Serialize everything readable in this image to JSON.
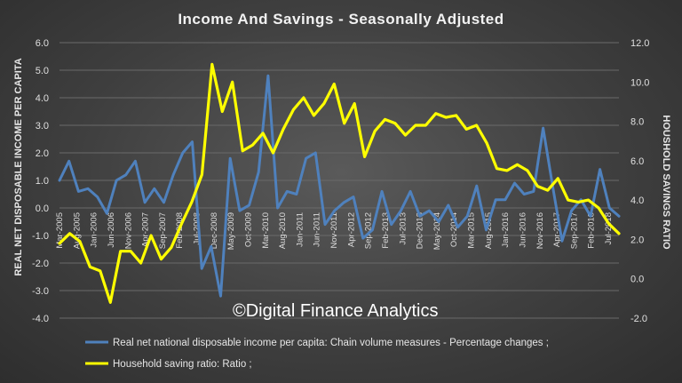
{
  "chart_data": {
    "type": "line",
    "title": "Income And Savings - Seasonally Adjusted",
    "ylabel_left": "REAL NET DISPOSABLE INCOME PER CAPITA",
    "ylabel_right": "HOUSHOLD SAVINGS RATIO",
    "ylim_left": [
      -4.0,
      6.0
    ],
    "ylim_right": [
      -2.0,
      12.0
    ],
    "yticks_left": [
      "6.0",
      "5.0",
      "4.0",
      "3.0",
      "2.0",
      "1.0",
      "0.0",
      "-1.0",
      "-2.0",
      "-3.0",
      "-4.0"
    ],
    "yticks_right": [
      "12.0",
      "10.0",
      "8.0",
      "6.0",
      "4.0",
      "2.0",
      "0.0",
      "-2.0"
    ],
    "x_tick_labels": [
      "Mar-2005",
      "Aug-2005",
      "Jan-2006",
      "Jun-2006",
      "Nov-2006",
      "Apr-2007",
      "Sep-2007",
      "Feb-2008",
      "Jul-2008",
      "Dec-2008",
      "May-2009",
      "Oct-2009",
      "Mar-2010",
      "Aug-2010",
      "Jan-2011",
      "Jun-2011",
      "Nov-2011",
      "Apr-2012",
      "Sep-2012",
      "Feb-2013",
      "Jul-2013",
      "Dec-2013",
      "May-2014",
      "Oct-2014",
      "Mar-2015",
      "Aug-2015",
      "Jan-2016",
      "Jun-2016",
      "Nov-2016",
      "Apr-2017",
      "Sep-2017",
      "Feb-2018",
      "Jul-2018"
    ],
    "grid": true,
    "legend_position": "bottom",
    "series": [
      {
        "name": "Real net national disposable income per capita: Chain volume measures - Percentage changes ;",
        "axis": "left",
        "color": "#4f81bd",
        "values": [
          1.0,
          1.7,
          0.6,
          0.7,
          0.4,
          -0.2,
          1.0,
          1.2,
          1.7,
          0.2,
          0.7,
          0.2,
          1.2,
          2.0,
          2.4,
          -2.2,
          -1.4,
          -3.2,
          1.8,
          -0.1,
          0.1,
          1.3,
          4.8,
          0.0,
          0.6,
          0.5,
          1.8,
          2.0,
          -0.6,
          -0.1,
          0.2,
          0.4,
          -1.1,
          -0.8,
          0.6,
          -0.6,
          -0.1,
          0.6,
          -0.3,
          -0.1,
          -0.5,
          0.1,
          -0.7,
          -0.3,
          0.8,
          -0.8,
          0.3,
          0.3,
          0.9,
          0.5,
          0.6,
          2.9,
          0.8,
          -1.2,
          -0.1,
          0.3,
          -0.3,
          1.4,
          0.0,
          -0.3
        ]
      },
      {
        "name": "Household saving ratio: Ratio ;",
        "axis": "right",
        "color": "#ffff00",
        "values": [
          1.8,
          2.3,
          1.9,
          0.6,
          0.4,
          -1.2,
          1.4,
          1.4,
          0.8,
          2.2,
          1.0,
          1.6,
          2.8,
          3.9,
          5.3,
          10.9,
          8.5,
          10.0,
          6.5,
          6.8,
          7.4,
          6.4,
          7.6,
          8.6,
          9.2,
          8.3,
          8.9,
          9.9,
          7.9,
          8.9,
          6.2,
          7.5,
          8.1,
          7.9,
          7.3,
          7.8,
          7.8,
          8.4,
          8.2,
          8.3,
          7.6,
          7.8,
          6.9,
          5.6,
          5.5,
          5.8,
          5.5,
          4.7,
          4.5,
          5.1,
          4.0,
          3.9,
          4.0,
          3.6,
          2.8,
          2.3
        ]
      }
    ]
  },
  "watermark": "©Digital Finance Analytics"
}
